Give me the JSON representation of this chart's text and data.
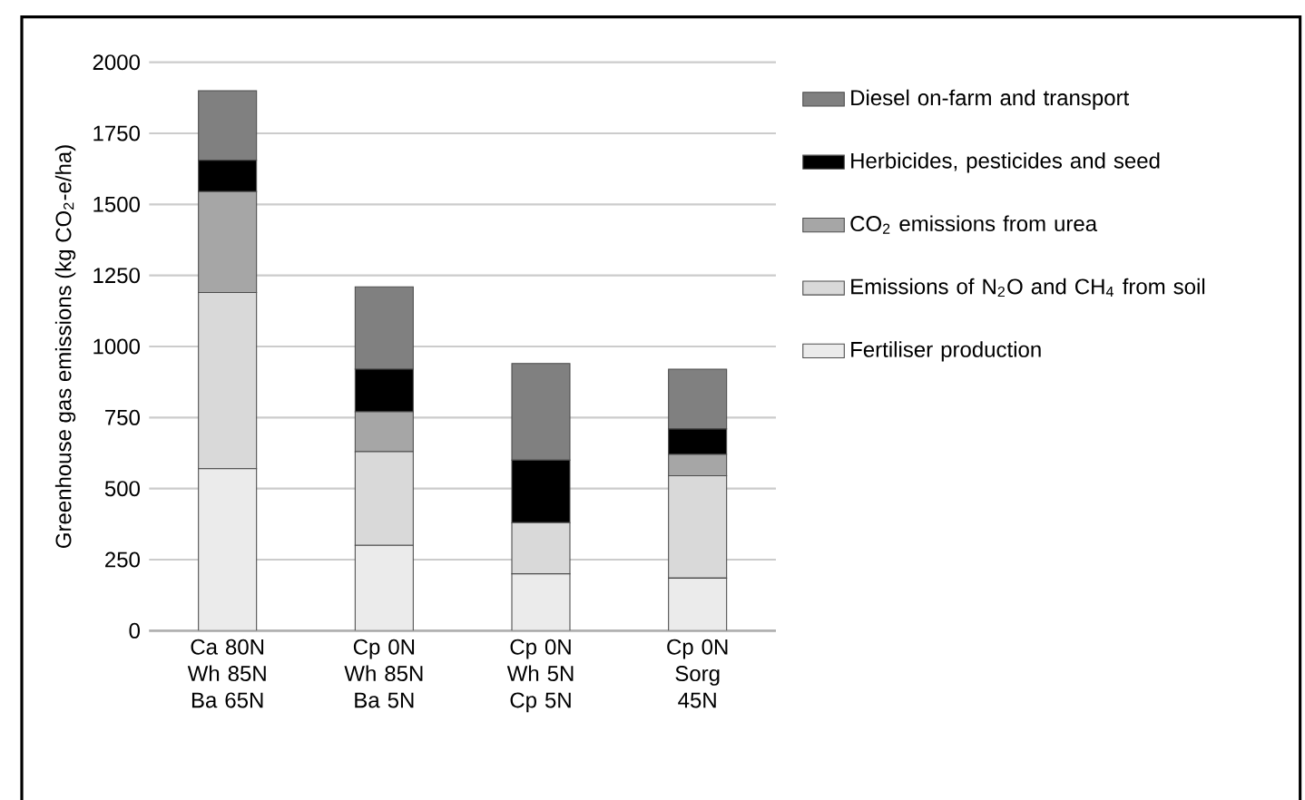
{
  "chart_data": {
    "type": "bar",
    "stacked": true,
    "ylabel": "Greenhouse gas emissions (kg CO$_{2}$-e/ha)",
    "categories": [
      "Ca 80N Wh 85N Ba 65N",
      "Cp 0N Wh 85N Ba 5N",
      "Cp 0N Wh 5N Cp 5N",
      "Cp 0N Sorg 45N"
    ],
    "series": [
      {
        "name": "Fertiliser production",
        "color": "#ebebeb",
        "values": [
          570,
          300,
          200,
          185
        ]
      },
      {
        "name": "Emissions of N$_{2}$O and CH$_{4}$ from soil",
        "color": "#d9d9d9",
        "values": [
          620,
          330,
          180,
          360
        ]
      },
      {
        "name": "CO$_{2}$ emissions from urea",
        "color": "#a6a6a6",
        "values": [
          355,
          140,
          0,
          75
        ]
      },
      {
        "name": "Herbicides, pesticides and seed",
        "color": "#000000",
        "values": [
          110,
          150,
          220,
          90
        ]
      },
      {
        "name": "Diesel on-farm and transport",
        "color": "#808080",
        "values": [
          245,
          290,
          340,
          210
        ]
      }
    ],
    "ylim": [
      0,
      2000
    ],
    "yticks": [
      0,
      250,
      500,
      750,
      1000,
      1250,
      1500,
      1750,
      2000
    ],
    "grid": "y",
    "legend": "right"
  }
}
